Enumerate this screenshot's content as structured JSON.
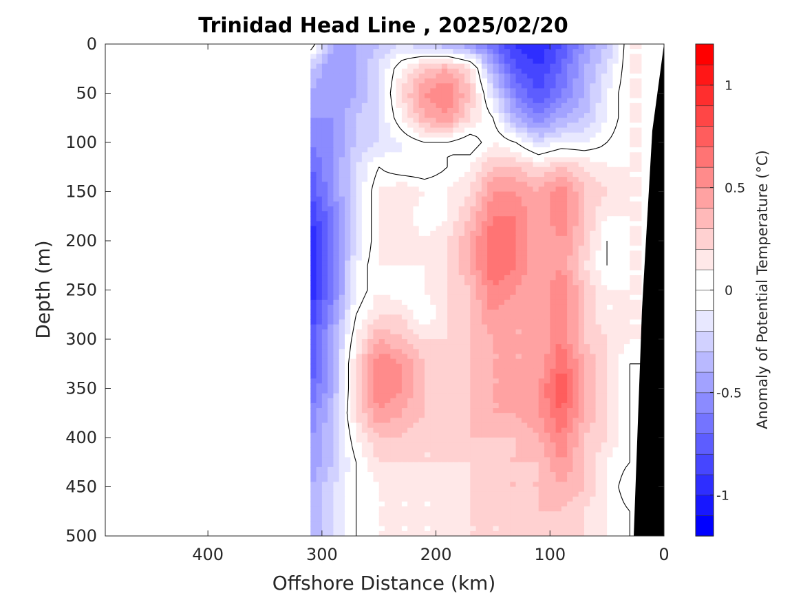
{
  "chart_data": {
    "type": "heatmap",
    "title": "Trinidad Head Line , 2025/02/20",
    "xlabel": "Offshore Distance (km)",
    "ylabel": "Depth (m)",
    "xlim": [
      490,
      0
    ],
    "ylim": [
      0,
      500
    ],
    "x_reversed": true,
    "y_reversed": true,
    "x_ticks": [
      "400",
      "300",
      "200",
      "100",
      "0"
    ],
    "x_tick_values": [
      400,
      300,
      200,
      100,
      0
    ],
    "y_ticks": [
      "0",
      "50",
      "100",
      "150",
      "200",
      "250",
      "300",
      "350",
      "400",
      "450",
      "500"
    ],
    "y_tick_values": [
      0,
      50,
      100,
      150,
      200,
      250,
      300,
      350,
      400,
      450,
      500
    ],
    "colorbar": {
      "label": "Anomaly of Potential Temperature (°C)",
      "range": [
        -1.2,
        1.2
      ],
      "step": 0.1,
      "ticks": [
        "1",
        "0.5",
        "0",
        "-0.5",
        "-1"
      ],
      "tick_values": [
        1,
        0.5,
        0,
        -0.5,
        -1
      ],
      "colormap": "blue-white-red"
    },
    "zero_contour": true,
    "data_extent_km": [
      310,
      20
    ],
    "bathymetry_color": "#000000",
    "grid_x": [
      310,
      290,
      270,
      250,
      230,
      210,
      190,
      170,
      150,
      130,
      110,
      90,
      70,
      50,
      30
    ],
    "grid_z": [
      0,
      25,
      50,
      75,
      100,
      125,
      150,
      175,
      200,
      225,
      250,
      275,
      300,
      325,
      350,
      375,
      400,
      425,
      450,
      475,
      500
    ],
    "values": [
      [
        0.1,
        -0.4,
        -0.4,
        -0.3,
        -0.2,
        -0.3,
        -0.4,
        -0.5,
        -0.7,
        -0.9,
        -1.0,
        -0.8,
        -0.5,
        -0.3,
        0.1
      ],
      [
        -0.3,
        -0.5,
        -0.4,
        -0.2,
        0.1,
        0.3,
        0.4,
        0.2,
        -0.4,
        -0.8,
        -0.9,
        -0.7,
        -0.4,
        -0.2,
        0.1
      ],
      [
        -0.4,
        -0.5,
        -0.4,
        -0.2,
        0.2,
        0.5,
        0.6,
        0.3,
        -0.2,
        -0.6,
        -0.8,
        -0.6,
        -0.4,
        -0.1,
        0.1
      ],
      [
        -0.5,
        -0.5,
        -0.3,
        -0.2,
        0.1,
        0.4,
        0.5,
        0.2,
        0.0,
        -0.4,
        -0.6,
        -0.4,
        -0.3,
        -0.1,
        0.1
      ],
      [
        -0.6,
        -0.5,
        -0.3,
        -0.2,
        -0.1,
        0.0,
        0.0,
        -0.1,
        0.1,
        0.0,
        -0.2,
        -0.1,
        -0.1,
        0.0,
        0.1
      ],
      [
        -0.7,
        -0.5,
        -0.2,
        0.0,
        -0.1,
        -0.1,
        0.0,
        0.1,
        0.3,
        0.3,
        0.2,
        0.3,
        0.2,
        0.1,
        0.1
      ],
      [
        -0.8,
        -0.5,
        -0.2,
        0.1,
        0.2,
        0.1,
        0.1,
        0.2,
        0.5,
        0.5,
        0.4,
        0.6,
        0.3,
        0.2,
        0.1
      ],
      [
        -0.9,
        -0.6,
        -0.2,
        0.1,
        0.2,
        0.0,
        0.1,
        0.3,
        0.6,
        0.6,
        0.4,
        0.6,
        0.3,
        0.1,
        0.1
      ],
      [
        -1.0,
        -0.6,
        -0.2,
        0.1,
        0.2,
        0.1,
        0.2,
        0.4,
        0.7,
        0.6,
        0.4,
        0.5,
        0.3,
        0.0,
        0.1
      ],
      [
        -1.0,
        -0.6,
        -0.1,
        0.1,
        0.1,
        0.1,
        0.2,
        0.4,
        0.7,
        0.6,
        0.4,
        0.5,
        0.2,
        0.0,
        0.1
      ],
      [
        -1.0,
        -0.6,
        -0.1,
        0.1,
        0.0,
        0.1,
        0.2,
        0.3,
        0.6,
        0.5,
        0.4,
        0.6,
        0.3,
        0.1,
        0.1
      ],
      [
        -0.9,
        -0.5,
        -0.0,
        0.2,
        0.2,
        0.0,
        0.2,
        0.3,
        0.5,
        0.4,
        0.4,
        0.6,
        0.3,
        0.1,
        0.1
      ],
      [
        -0.8,
        -0.4,
        0.1,
        0.4,
        0.3,
        0.2,
        0.2,
        0.3,
        0.4,
        0.4,
        0.4,
        0.6,
        0.3,
        0.2,
        0.1
      ],
      [
        -0.8,
        -0.4,
        0.2,
        0.6,
        0.5,
        0.3,
        0.2,
        0.3,
        0.4,
        0.4,
        0.4,
        0.7,
        0.4,
        0.2,
        0.0
      ],
      [
        -0.7,
        -0.4,
        0.2,
        0.6,
        0.5,
        0.3,
        0.2,
        0.3,
        0.4,
        0.4,
        0.5,
        0.8,
        0.4,
        0.2,
        0.0
      ],
      [
        -0.6,
        -0.3,
        0.2,
        0.5,
        0.4,
        0.3,
        0.2,
        0.3,
        0.4,
        0.4,
        0.5,
        0.7,
        0.4,
        0.2,
        0.0
      ],
      [
        -0.5,
        -0.3,
        0.1,
        0.3,
        0.3,
        0.2,
        0.2,
        0.3,
        0.3,
        0.3,
        0.4,
        0.6,
        0.3,
        0.2,
        0.0
      ],
      [
        -0.5,
        -0.3,
        0.0,
        0.2,
        0.2,
        0.2,
        0.2,
        0.2,
        0.3,
        0.3,
        0.3,
        0.5,
        0.3,
        0.1,
        0.0
      ],
      [
        -0.4,
        -0.2,
        0.0,
        0.1,
        0.1,
        0.1,
        0.1,
        0.2,
        0.3,
        0.3,
        0.3,
        0.4,
        0.3,
        0.1,
        -0.1
      ],
      [
        -0.4,
        -0.2,
        0.0,
        0.1,
        0.1,
        0.1,
        0.1,
        0.2,
        0.2,
        0.2,
        0.3,
        0.3,
        0.2,
        0.1,
        0.0
      ],
      [
        -0.4,
        -0.2,
        -0.0,
        0.1,
        0.1,
        0.1,
        0.1,
        0.2,
        0.2,
        0.2,
        0.2,
        0.3,
        0.2,
        0.1,
        0.0
      ]
    ]
  }
}
